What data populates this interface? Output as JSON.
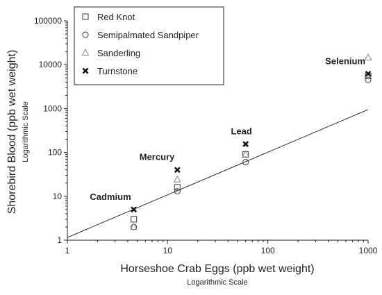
{
  "chart_data": {
    "type": "scatter",
    "xscale": "log",
    "yscale": "log",
    "xlim": [
      1,
      1000
    ],
    "ylim": [
      1,
      100000
    ],
    "xlabel": "Horseshoe Crab Eggs (ppb wet weight)",
    "xlabel_sub": "Logarithmic Scale",
    "ylabel": "Shorebird Blood (ppb wet weight)",
    "ylabel_sub": "Logarithmic Scale",
    "x_ticks": [
      "1",
      "10",
      "100",
      "1000"
    ],
    "y_ticks": [
      "1",
      "10",
      "100",
      "1000",
      "10000",
      "100000"
    ],
    "grid": false,
    "legend_position": "top-left",
    "series": [
      {
        "name": "Red Knot",
        "marker": "square",
        "points": [
          [
            4.6,
            3.0
          ],
          [
            12.5,
            16
          ],
          [
            60,
            90
          ],
          [
            1000,
            5500
          ]
        ]
      },
      {
        "name": "Semipalmated Sandpiper",
        "marker": "circle",
        "points": [
          [
            4.6,
            2.0
          ],
          [
            12.5,
            13
          ],
          [
            60,
            60
          ],
          [
            1000,
            4500
          ]
        ]
      },
      {
        "name": "Sanderling",
        "marker": "triangle",
        "points": [
          [
            4.6,
            2.0
          ],
          [
            12.5,
            24
          ],
          [
            60,
            90
          ],
          [
            1000,
            14500
          ]
        ]
      },
      {
        "name": "Turnstone",
        "marker": "x",
        "points": [
          [
            4.6,
            5.0
          ],
          [
            12.5,
            40
          ],
          [
            60,
            155
          ],
          [
            1000,
            6200
          ]
        ]
      }
    ],
    "regression_line": {
      "points": [
        [
          1,
          1.15
        ],
        [
          1000,
          950
        ]
      ]
    },
    "annotations": [
      {
        "text": "Cadmium",
        "x": 4.6,
        "y": 5.0
      },
      {
        "text": "Mercury",
        "x": 12.5,
        "y": 40
      },
      {
        "text": "Lead",
        "x": 60,
        "y": 155
      },
      {
        "text": "Selenium",
        "x": 1000,
        "y": 6200
      }
    ]
  }
}
